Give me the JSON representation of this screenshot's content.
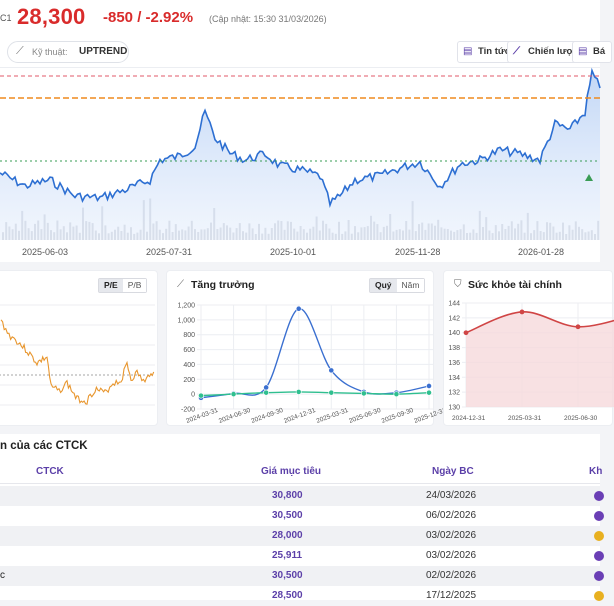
{
  "header": {
    "ticker_fragment": "C1",
    "price": "28,300",
    "change": "-850 / -2.92%",
    "update": "(Cập nhật: 15:30 31/03/2026)"
  },
  "toolbar": {
    "technical_label": "Kỹ thuật:",
    "technical_value": "UPTREND",
    "buttons": [
      "Tin tức",
      "Chiến lược",
      "Bá"
    ]
  },
  "main_chart": {
    "x_labels": [
      "2025-06-03",
      "2025-07-31",
      "2025-10-01",
      "2025-11-28",
      "2026-01-28"
    ]
  },
  "valuation": {
    "tabs": [
      "P/E",
      "P/B"
    ],
    "active_tab": "P/E"
  },
  "growth": {
    "title": "Tăng trưởng",
    "tabs": [
      "Quý",
      "Năm"
    ],
    "active_tab": "Quý",
    "y_ticks": [
      "1,200",
      "1,000",
      "800",
      "600",
      "400",
      "200",
      "0",
      "-200"
    ],
    "x_ticks": [
      "2024-03-31",
      "2024-06-30",
      "2024-09-30",
      "2024-12-31",
      "2025-03-31",
      "2025-06-30",
      "2025-09-30",
      "2025-12-31"
    ]
  },
  "health": {
    "title": "Sức khỏe tài chính",
    "y_ticks": [
      "144",
      "142",
      "140",
      "138",
      "136",
      "134",
      "132",
      "130"
    ],
    "x_ticks": [
      "2024-12-31",
      "2025-03-31",
      "2025-06-30"
    ]
  },
  "chart_data": [
    {
      "type": "line",
      "title": "Tăng trưởng",
      "x": [
        "2024-03-31",
        "2024-06-30",
        "2024-09-30",
        "2024-12-31",
        "2025-03-31",
        "2025-06-30",
        "2025-09-30",
        "2025-12-31"
      ],
      "ylim": [
        -200,
        1200
      ],
      "series": [
        {
          "name": "series-blue",
          "color": "#3a6fd0",
          "values": [
            -50,
            10,
            90,
            1150,
            320,
            30,
            20,
            110
          ]
        },
        {
          "name": "series-green",
          "color": "#2fbf8f",
          "values": [
            -20,
            0,
            20,
            30,
            20,
            10,
            0,
            20
          ]
        }
      ]
    },
    {
      "type": "line",
      "title": "Sức khỏe tài chính",
      "x": [
        "2024-12-31",
        "2025-03-31",
        "2025-06-30",
        "2025-09-30"
      ],
      "ylim": [
        130,
        144
      ],
      "series": [
        {
          "name": "health",
          "color": "#d04545",
          "values": [
            140,
            142.8,
            140.8,
            142.4
          ]
        }
      ]
    }
  ],
  "analyst_table": {
    "title": "n của các CTCK",
    "headers": [
      "CTCK",
      "Giá mục tiêu",
      "Ngày BC",
      "Kh"
    ],
    "rows": [
      {
        "name": "",
        "target": "30,800",
        "date": "24/03/2026",
        "color": "#6a3fb5"
      },
      {
        "name": "",
        "target": "30,500",
        "date": "06/02/2026",
        "color": "#6a3fb5"
      },
      {
        "name": "",
        "target": "28,000",
        "date": "03/02/2026",
        "color": "#e8b020"
      },
      {
        "name": "",
        "target": "25,911",
        "date": "03/02/2026",
        "color": "#6a3fb5"
      },
      {
        "name": "c",
        "target": "30,500",
        "date": "02/02/2026",
        "color": "#6a3fb5"
      },
      {
        "name": "",
        "target": "28,500",
        "date": "17/12/2025",
        "color": "#e8b020"
      }
    ]
  }
}
